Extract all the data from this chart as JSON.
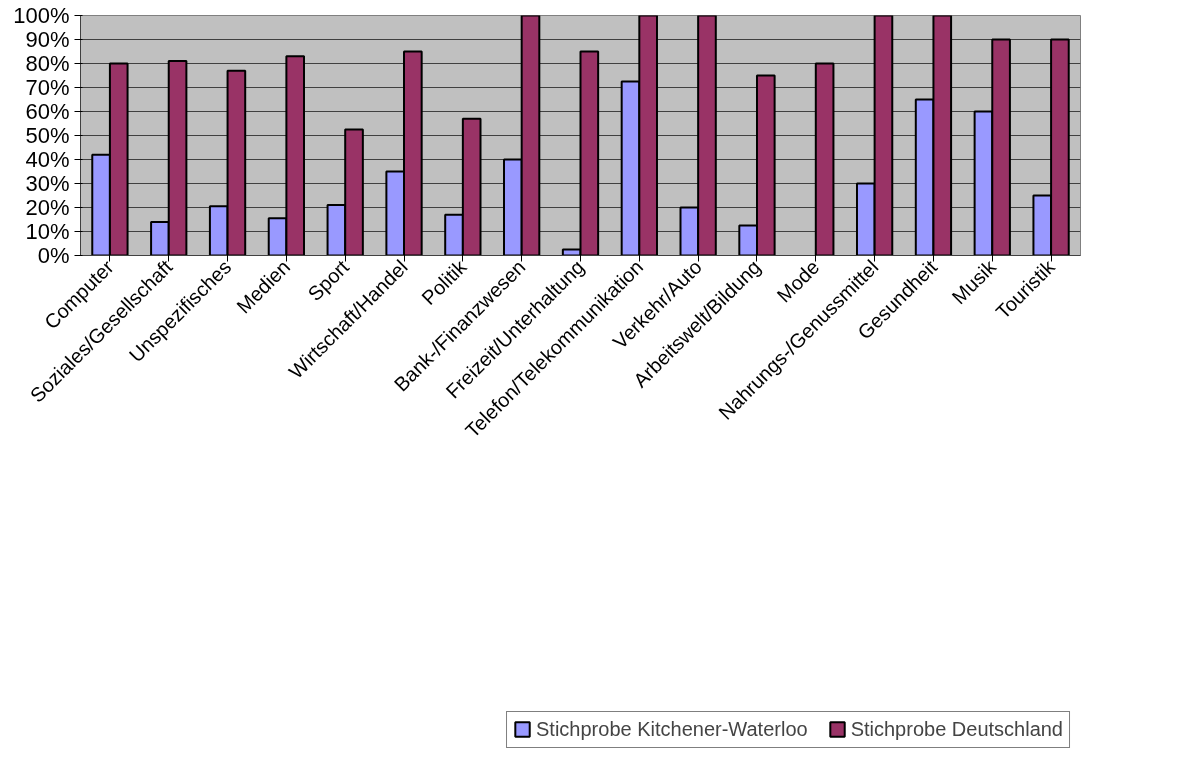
{
  "chart_data": {
    "type": "bar",
    "categories": [
      "Computer",
      "Soziales/Gesellschaft",
      "Unspezifisches",
      "Medien",
      "Sport",
      "Wirtschaft/Handel",
      "Politik",
      "Bank-/Finanzwesen",
      "Freizeit/Unterhaltung",
      "Telefon/Telekommunikation",
      "Verkehr/Auto",
      "Arbeitswelt/Bildung",
      "Mode",
      "Nahrungs-/Genussmittel",
      "Gesundheit",
      "Musik",
      "Touristik"
    ],
    "series": [
      {
        "name": "Stichprobe Kitchener-Waterloo",
        "color": "#9999ff",
        "values": [
          42,
          14,
          20.5,
          15.5,
          21,
          35,
          17,
          40,
          2.5,
          72.5,
          20,
          12.5,
          null,
          30,
          65,
          60,
          25
        ]
      },
      {
        "name": "Stichprobe Deutschland",
        "color": "#993366",
        "values": [
          80,
          81,
          77,
          83,
          52.5,
          85,
          57,
          100,
          85,
          100,
          100,
          75,
          80,
          100,
          100,
          90,
          90
        ]
      }
    ],
    "ylim": [
      0,
      100
    ],
    "yticks": [
      {
        "value": 0,
        "label": "0%"
      },
      {
        "value": 10,
        "label": "10%"
      },
      {
        "value": 20,
        "label": "20%"
      },
      {
        "value": 30,
        "label": "30%"
      },
      {
        "value": 40,
        "label": "40%"
      },
      {
        "value": 50,
        "label": "50%"
      },
      {
        "value": 60,
        "label": "60%"
      },
      {
        "value": 70,
        "label": "70%"
      },
      {
        "value": 80,
        "label": "80%"
      },
      {
        "value": 90,
        "label": "90%"
      },
      {
        "value": 100,
        "label": "100%"
      }
    ],
    "grid": "y",
    "legend": "bottom"
  }
}
